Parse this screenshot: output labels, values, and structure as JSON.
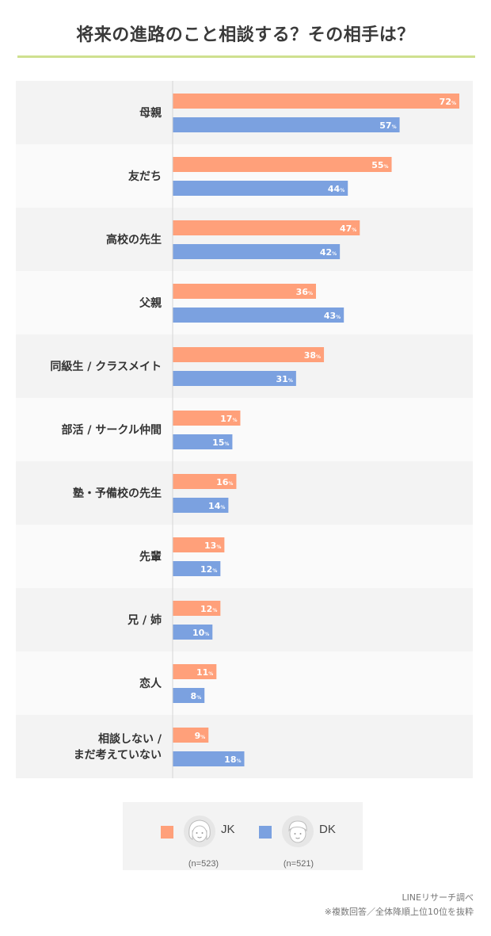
{
  "title": "将来の進路のこと相談する？その相手は？",
  "chart_data": {
    "type": "bar",
    "orientation": "horizontal",
    "categories": [
      "母親",
      "友だち",
      "高校の先生",
      "父親",
      "同級生 / クラスメイト",
      "部活 / サークル仲間",
      "塾・予備校の先生",
      "先輩",
      "兄 / 姉",
      "恋人",
      "相談しない /\nまだ考えていない"
    ],
    "series": [
      {
        "name": "JK",
        "color": "#ffa07a",
        "values": [
          72,
          55,
          47,
          36,
          38,
          17,
          16,
          13,
          12,
          11,
          9
        ]
      },
      {
        "name": "DK",
        "color": "#7ba1e0",
        "values": [
          57,
          44,
          42,
          43,
          31,
          15,
          14,
          12,
          10,
          8,
          18
        ]
      }
    ],
    "unit": "%",
    "xlim": [
      0,
      75
    ]
  },
  "legend": {
    "jk": {
      "label": "JK",
      "n": "(n=523)",
      "color": "#ffa07a",
      "icon": "girl-face-icon"
    },
    "dk": {
      "label": "DK",
      "n": "(n=521)",
      "color": "#7ba1e0",
      "icon": "boy-face-icon"
    }
  },
  "source": {
    "line1": "LINEリサーチ調べ",
    "line2": "※複数回答／全体降順上位10位を抜粋"
  },
  "colors": {
    "band_odd": "#f3f3f3",
    "band_even": "#fafafa",
    "title_rule": "#cfe08f"
  }
}
